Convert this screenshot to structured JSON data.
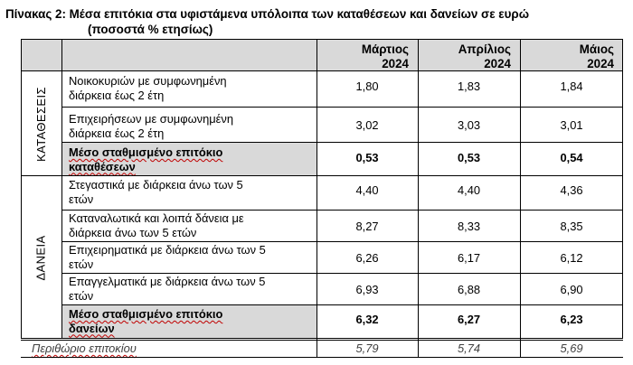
{
  "title": "Πίνακας 2: Μέσα επιτόκια στα υφιστάμενα υπόλοιπα των καταθέσεων και δανείων σε ευρώ",
  "subtitle": "(ποσοστά % ετησίως)",
  "header": {
    "months": [
      "Μάρτιος",
      "Απρίλιος",
      "Μάιος"
    ],
    "year": "2024"
  },
  "groups": {
    "deposits": "ΚΑΤΑΘΕΣΕΙΣ",
    "loans": "ΔΑΝΕΙΑ"
  },
  "rows": [
    {
      "label_lines": [
        "Νοικοκυριών με συμφωνημένη",
        "διάρκεια έως 2 έτη"
      ],
      "values": [
        "1,80",
        "1,83",
        "1,84"
      ]
    },
    {
      "label_lines": [
        "Επιχειρήσεων με συμφωνημένη",
        "διάρκεια έως 2 έτη"
      ],
      "values": [
        "3,02",
        "3,03",
        "3,01"
      ]
    },
    {
      "label_lines": [
        "Μέσο σταθμισμένο επιτόκιο",
        "καταθέσεων"
      ],
      "values": [
        "0,53",
        "0,53",
        "0,54"
      ]
    },
    {
      "label_lines": [
        "Στεγαστικά με διάρκεια άνω των 5",
        "ετών"
      ],
      "values": [
        "4,40",
        "4,40",
        "4,36"
      ]
    },
    {
      "label_lines": [
        "Καταναλωτικά και λοιπά δάνεια με",
        "διάρκεια άνω των 5 ετών"
      ],
      "values": [
        "8,27",
        "8,33",
        "8,35"
      ]
    },
    {
      "label_lines": [
        "Επιχειρηματικά με διάρκεια άνω των 5",
        "ετών"
      ],
      "values": [
        "6,26",
        "6,17",
        "6,12"
      ]
    },
    {
      "label_lines": [
        "Επαγγελματικά με διάρκεια άνω των 5",
        "ετών"
      ],
      "values": [
        "6,93",
        "6,88",
        "6,90"
      ]
    },
    {
      "label_lines": [
        "Μέσο σταθμισμένο επιτόκιο",
        "δανείων"
      ],
      "values": [
        "6,32",
        "6,27",
        "6,23"
      ]
    }
  ],
  "margin_row": {
    "label": "Περιθώριο επιτοκίου",
    "values": [
      "5,79",
      "5,74",
      "5,69"
    ]
  }
}
